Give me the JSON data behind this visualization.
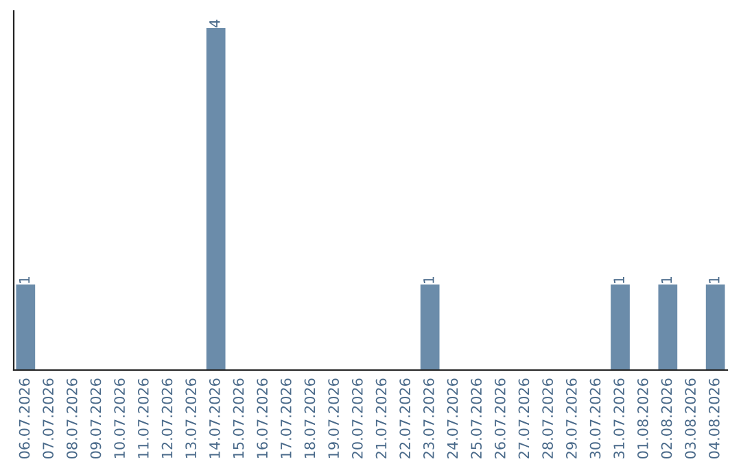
{
  "chart_data": {
    "type": "bar",
    "categories": [
      "06.07.2026",
      "07.07.2026",
      "08.07.2026",
      "09.07.2026",
      "10.07.2026",
      "11.07.2026",
      "12.07.2026",
      "13.07.2026",
      "14.07.2026",
      "15.07.2026",
      "16.07.2026",
      "17.07.2026",
      "18.07.2026",
      "19.07.2026",
      "20.07.2026",
      "21.07.2026",
      "22.07.2026",
      "23.07.2026",
      "24.07.2026",
      "25.07.2026",
      "26.07.2026",
      "27.07.2026",
      "28.07.2026",
      "29.07.2026",
      "30.07.2026",
      "31.07.2026",
      "01.08.2026",
      "02.08.2026",
      "03.08.2026",
      "04.08.2026"
    ],
    "values": [
      1,
      0,
      0,
      0,
      0,
      0,
      0,
      0,
      4,
      0,
      0,
      0,
      0,
      0,
      0,
      0,
      0,
      1,
      0,
      0,
      0,
      0,
      0,
      0,
      0,
      1,
      0,
      1,
      0,
      1
    ],
    "color": "#6b8caa",
    "value_labels": [
      "1",
      null,
      null,
      null,
      null,
      null,
      null,
      null,
      "4",
      null,
      null,
      null,
      null,
      null,
      null,
      null,
      null,
      "1",
      null,
      null,
      null,
      null,
      null,
      null,
      null,
      "1",
      null,
      "1",
      null,
      "1"
    ],
    "tick_labels": "x",
    "grid": false,
    "legend": false
  }
}
